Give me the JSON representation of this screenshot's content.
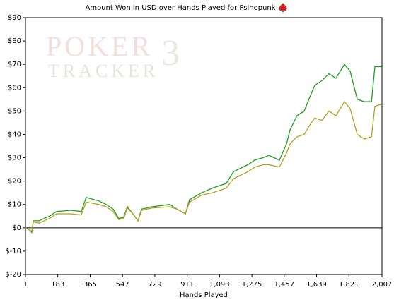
{
  "chart_data": {
    "type": "line",
    "title": "Amount Won in USD over Hands Played for Psihopunk",
    "x_label": "Hands Played",
    "watermark": [
      "POKER",
      "3",
      "TRACKER"
    ],
    "x": [
      1,
      25,
      37,
      45,
      77,
      136,
      176,
      256,
      315,
      343,
      415,
      455,
      495,
      526,
      554,
      574,
      606,
      634,
      654,
      713,
      813,
      853,
      901,
      924,
      992,
      1052,
      1131,
      1171,
      1251,
      1291,
      1338,
      1370,
      1430,
      1470,
      1490,
      1529,
      1569,
      1601,
      1629,
      1669,
      1709,
      1748,
      1796,
      1828,
      1868,
      1908,
      1948,
      1967,
      2007
    ],
    "series": [
      {
        "color": "#1f9e1f",
        "values": [
          0,
          -1,
          -2,
          3,
          3,
          5,
          7,
          7.5,
          7,
          13,
          11.5,
          10,
          8,
          4,
          4.5,
          9,
          6,
          3,
          8,
          9,
          10,
          8,
          6,
          12,
          15,
          17,
          19,
          24,
          27,
          29,
          30,
          31,
          29,
          36,
          42,
          48,
          50,
          56,
          61,
          63,
          66,
          64,
          70,
          67,
          55,
          54,
          54,
          69,
          69
        ]
      },
      {
        "color": "#b3a01c",
        "values": [
          0,
          -1,
          -1.5,
          2.5,
          2,
          4,
          6,
          6,
          5.5,
          11,
          10,
          9,
          7,
          3.5,
          4,
          8.5,
          6,
          3,
          7.5,
          8.5,
          9,
          8,
          6,
          11,
          14,
          15,
          17,
          21,
          24,
          26,
          27,
          27,
          26,
          32,
          36,
          39,
          40,
          44,
          47,
          46,
          50,
          48,
          54,
          51,
          40,
          38,
          39,
          52,
          53
        ]
      }
    ],
    "xlim": [
      1,
      2007
    ],
    "xticks": [
      1,
      183,
      365,
      547,
      729,
      911,
      {
        "value": 1093,
        "label": "1,093"
      },
      {
        "value": 1275,
        "label": "1,275"
      },
      {
        "value": 1457,
        "label": "1,457"
      },
      {
        "value": 1639,
        "label": "1,639"
      },
      {
        "value": 1821,
        "label": "1,821"
      },
      {
        "value": 2007,
        "label": "2,007"
      }
    ],
    "ylim": [
      -20,
      90
    ],
    "yticks": [
      {
        "value": -20,
        "label": "$-20"
      },
      {
        "value": -10,
        "label": "$-10"
      },
      {
        "value": 0,
        "label": "$0"
      },
      {
        "value": 10,
        "label": "$10"
      },
      {
        "value": 20,
        "label": "$20"
      },
      {
        "value": 30,
        "label": "$30"
      },
      {
        "value": 40,
        "label": "$40"
      },
      {
        "value": 50,
        "label": "$50"
      },
      {
        "value": 60,
        "label": "$60"
      },
      {
        "value": 70,
        "label": "$70"
      },
      {
        "value": 80,
        "label": "$80"
      },
      {
        "value": 90,
        "label": "$90"
      }
    ],
    "zero_line": true
  }
}
